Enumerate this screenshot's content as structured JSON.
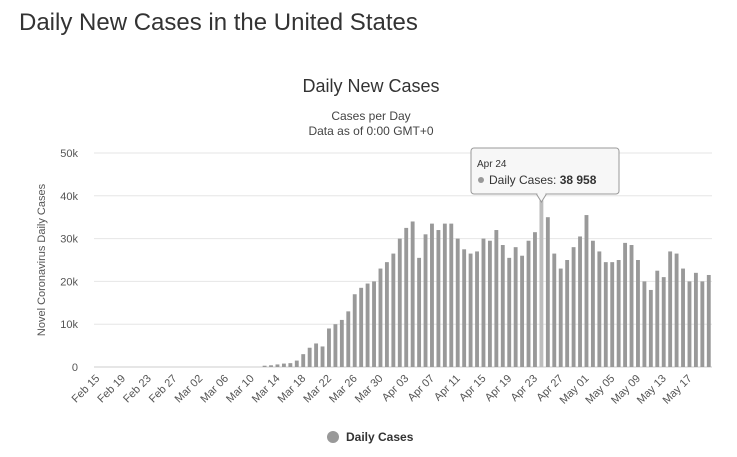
{
  "page": {
    "heading": "Daily New Cases in the United States"
  },
  "colors": {
    "bar": "#999999",
    "bar_highlight": "#bdbdbd",
    "grid": "#e6e6e6",
    "tooltip_border": "#999999"
  },
  "chart_data": {
    "type": "bar",
    "title": "Daily New Cases",
    "subtitle": [
      "Cases per Day",
      "Data as of 0:00 GMT+0"
    ],
    "ylabel": "Novel Coronavirus Daily Cases",
    "xlabel": "",
    "ylim": [
      0,
      50000
    ],
    "y_ticks": [
      0,
      10000,
      20000,
      30000,
      40000,
      50000
    ],
    "y_tick_labels": [
      "0",
      "10k",
      "20k",
      "30k",
      "40k",
      "50k"
    ],
    "grid": true,
    "legend": {
      "position": "bottom-center",
      "entries": [
        "Daily Cases"
      ]
    },
    "categories": [
      "Feb 15",
      "Feb 16",
      "Feb 17",
      "Feb 18",
      "Feb 19",
      "Feb 20",
      "Feb 21",
      "Feb 22",
      "Feb 23",
      "Feb 24",
      "Feb 25",
      "Feb 26",
      "Feb 27",
      "Feb 28",
      "Feb 29",
      "Mar 01",
      "Mar 02",
      "Mar 03",
      "Mar 04",
      "Mar 05",
      "Mar 06",
      "Mar 07",
      "Mar 08",
      "Mar 09",
      "Mar 10",
      "Mar 11",
      "Mar 12",
      "Mar 13",
      "Mar 14",
      "Mar 15",
      "Mar 16",
      "Mar 17",
      "Mar 18",
      "Mar 19",
      "Mar 20",
      "Mar 21",
      "Mar 22",
      "Mar 23",
      "Mar 24",
      "Mar 25",
      "Mar 26",
      "Mar 27",
      "Mar 28",
      "Mar 29",
      "Mar 30",
      "Mar 31",
      "Apr 01",
      "Apr 02",
      "Apr 03",
      "Apr 04",
      "Apr 05",
      "Apr 06",
      "Apr 07",
      "Apr 08",
      "Apr 09",
      "Apr 10",
      "Apr 11",
      "Apr 12",
      "Apr 13",
      "Apr 14",
      "Apr 15",
      "Apr 16",
      "Apr 17",
      "Apr 18",
      "Apr 19",
      "Apr 20",
      "Apr 21",
      "Apr 22",
      "Apr 23",
      "Apr 24",
      "Apr 25",
      "Apr 26",
      "Apr 27",
      "Apr 28",
      "Apr 29",
      "Apr 30",
      "May 01",
      "May 02",
      "May 03",
      "May 04",
      "May 05",
      "May 06",
      "May 07",
      "May 08",
      "May 09",
      "May 10",
      "May 11",
      "May 12",
      "May 13",
      "May 14",
      "May 15",
      "May 16",
      "May 17",
      "May 18",
      "May 19",
      "May 20"
    ],
    "x_tick_labels": [
      "Feb 15",
      "Feb 19",
      "Feb 23",
      "Feb 27",
      "Mar 02",
      "Mar 06",
      "Mar 10",
      "Mar 14",
      "Mar 18",
      "Mar 22",
      "Mar 26",
      "Mar 30",
      "Apr 03",
      "Apr 07",
      "Apr 11",
      "Apr 15",
      "Apr 19",
      "Apr 23",
      "Apr 27",
      "May 01",
      "May 05",
      "May 09",
      "May 13",
      "May 17"
    ],
    "series": [
      {
        "name": "Daily Cases",
        "values": [
          0,
          0,
          0,
          0,
          0,
          0,
          0,
          0,
          0,
          0,
          0,
          0,
          0,
          0,
          0,
          0,
          0,
          0,
          0,
          0,
          0,
          0,
          0,
          0,
          0,
          0,
          300,
          400,
          600,
          800,
          900,
          1500,
          3000,
          4500,
          5500,
          4800,
          9000,
          10000,
          11000,
          13000,
          17000,
          18500,
          19500,
          20000,
          23000,
          24500,
          26500,
          30000,
          32500,
          34000,
          25500,
          31000,
          33500,
          32000,
          33500,
          33500,
          30000,
          27500,
          26500,
          27000,
          30000,
          29500,
          32000,
          28500,
          25500,
          28000,
          26000,
          29500,
          31500,
          38958,
          35000,
          26500,
          23000,
          25000,
          28000,
          30500,
          35500,
          29500,
          27000,
          24500,
          24500,
          25000,
          29000,
          28500,
          25000,
          20000,
          18000,
          22500,
          21000,
          27000,
          26500,
          23000,
          20000,
          22000,
          20000,
          21500
        ]
      }
    ],
    "tooltip": {
      "date": "Apr 24",
      "series": "Daily Cases",
      "value": "38 958",
      "category": "Apr 24"
    }
  }
}
